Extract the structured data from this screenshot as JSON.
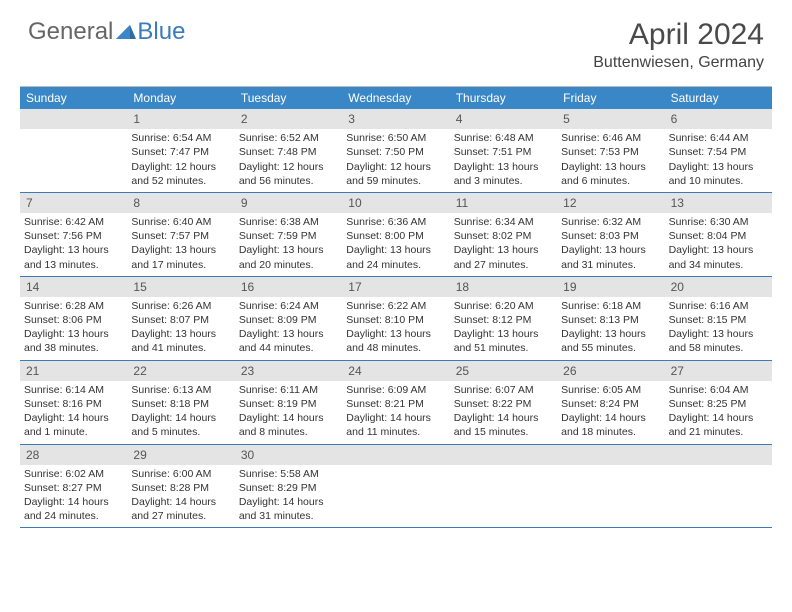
{
  "logo": {
    "part1": "General",
    "part2": "Blue"
  },
  "title": "April 2024",
  "location": "Buttenwiesen, Germany",
  "colors": {
    "header_bg": "#3a87c8",
    "header_fg": "#ffffff",
    "daynum_bg": "#e4e4e4",
    "daynum_fg": "#555555",
    "week_border": "#3a7cb8",
    "page_bg": "#ffffff"
  },
  "day_names": [
    "Sunday",
    "Monday",
    "Tuesday",
    "Wednesday",
    "Thursday",
    "Friday",
    "Saturday"
  ],
  "weeks": [
    [
      null,
      {
        "n": "1",
        "sr": "Sunrise: 6:54 AM",
        "ss": "Sunset: 7:47 PM",
        "dl": "Daylight: 12 hours and 52 minutes."
      },
      {
        "n": "2",
        "sr": "Sunrise: 6:52 AM",
        "ss": "Sunset: 7:48 PM",
        "dl": "Daylight: 12 hours and 56 minutes."
      },
      {
        "n": "3",
        "sr": "Sunrise: 6:50 AM",
        "ss": "Sunset: 7:50 PM",
        "dl": "Daylight: 12 hours and 59 minutes."
      },
      {
        "n": "4",
        "sr": "Sunrise: 6:48 AM",
        "ss": "Sunset: 7:51 PM",
        "dl": "Daylight: 13 hours and 3 minutes."
      },
      {
        "n": "5",
        "sr": "Sunrise: 6:46 AM",
        "ss": "Sunset: 7:53 PM",
        "dl": "Daylight: 13 hours and 6 minutes."
      },
      {
        "n": "6",
        "sr": "Sunrise: 6:44 AM",
        "ss": "Sunset: 7:54 PM",
        "dl": "Daylight: 13 hours and 10 minutes."
      }
    ],
    [
      {
        "n": "7",
        "sr": "Sunrise: 6:42 AM",
        "ss": "Sunset: 7:56 PM",
        "dl": "Daylight: 13 hours and 13 minutes."
      },
      {
        "n": "8",
        "sr": "Sunrise: 6:40 AM",
        "ss": "Sunset: 7:57 PM",
        "dl": "Daylight: 13 hours and 17 minutes."
      },
      {
        "n": "9",
        "sr": "Sunrise: 6:38 AM",
        "ss": "Sunset: 7:59 PM",
        "dl": "Daylight: 13 hours and 20 minutes."
      },
      {
        "n": "10",
        "sr": "Sunrise: 6:36 AM",
        "ss": "Sunset: 8:00 PM",
        "dl": "Daylight: 13 hours and 24 minutes."
      },
      {
        "n": "11",
        "sr": "Sunrise: 6:34 AM",
        "ss": "Sunset: 8:02 PM",
        "dl": "Daylight: 13 hours and 27 minutes."
      },
      {
        "n": "12",
        "sr": "Sunrise: 6:32 AM",
        "ss": "Sunset: 8:03 PM",
        "dl": "Daylight: 13 hours and 31 minutes."
      },
      {
        "n": "13",
        "sr": "Sunrise: 6:30 AM",
        "ss": "Sunset: 8:04 PM",
        "dl": "Daylight: 13 hours and 34 minutes."
      }
    ],
    [
      {
        "n": "14",
        "sr": "Sunrise: 6:28 AM",
        "ss": "Sunset: 8:06 PM",
        "dl": "Daylight: 13 hours and 38 minutes."
      },
      {
        "n": "15",
        "sr": "Sunrise: 6:26 AM",
        "ss": "Sunset: 8:07 PM",
        "dl": "Daylight: 13 hours and 41 minutes."
      },
      {
        "n": "16",
        "sr": "Sunrise: 6:24 AM",
        "ss": "Sunset: 8:09 PM",
        "dl": "Daylight: 13 hours and 44 minutes."
      },
      {
        "n": "17",
        "sr": "Sunrise: 6:22 AM",
        "ss": "Sunset: 8:10 PM",
        "dl": "Daylight: 13 hours and 48 minutes."
      },
      {
        "n": "18",
        "sr": "Sunrise: 6:20 AM",
        "ss": "Sunset: 8:12 PM",
        "dl": "Daylight: 13 hours and 51 minutes."
      },
      {
        "n": "19",
        "sr": "Sunrise: 6:18 AM",
        "ss": "Sunset: 8:13 PM",
        "dl": "Daylight: 13 hours and 55 minutes."
      },
      {
        "n": "20",
        "sr": "Sunrise: 6:16 AM",
        "ss": "Sunset: 8:15 PM",
        "dl": "Daylight: 13 hours and 58 minutes."
      }
    ],
    [
      {
        "n": "21",
        "sr": "Sunrise: 6:14 AM",
        "ss": "Sunset: 8:16 PM",
        "dl": "Daylight: 14 hours and 1 minute."
      },
      {
        "n": "22",
        "sr": "Sunrise: 6:13 AM",
        "ss": "Sunset: 8:18 PM",
        "dl": "Daylight: 14 hours and 5 minutes."
      },
      {
        "n": "23",
        "sr": "Sunrise: 6:11 AM",
        "ss": "Sunset: 8:19 PM",
        "dl": "Daylight: 14 hours and 8 minutes."
      },
      {
        "n": "24",
        "sr": "Sunrise: 6:09 AM",
        "ss": "Sunset: 8:21 PM",
        "dl": "Daylight: 14 hours and 11 minutes."
      },
      {
        "n": "25",
        "sr": "Sunrise: 6:07 AM",
        "ss": "Sunset: 8:22 PM",
        "dl": "Daylight: 14 hours and 15 minutes."
      },
      {
        "n": "26",
        "sr": "Sunrise: 6:05 AM",
        "ss": "Sunset: 8:24 PM",
        "dl": "Daylight: 14 hours and 18 minutes."
      },
      {
        "n": "27",
        "sr": "Sunrise: 6:04 AM",
        "ss": "Sunset: 8:25 PM",
        "dl": "Daylight: 14 hours and 21 minutes."
      }
    ],
    [
      {
        "n": "28",
        "sr": "Sunrise: 6:02 AM",
        "ss": "Sunset: 8:27 PM",
        "dl": "Daylight: 14 hours and 24 minutes."
      },
      {
        "n": "29",
        "sr": "Sunrise: 6:00 AM",
        "ss": "Sunset: 8:28 PM",
        "dl": "Daylight: 14 hours and 27 minutes."
      },
      {
        "n": "30",
        "sr": "Sunrise: 5:58 AM",
        "ss": "Sunset: 8:29 PM",
        "dl": "Daylight: 14 hours and 31 minutes."
      },
      null,
      null,
      null,
      null
    ]
  ]
}
